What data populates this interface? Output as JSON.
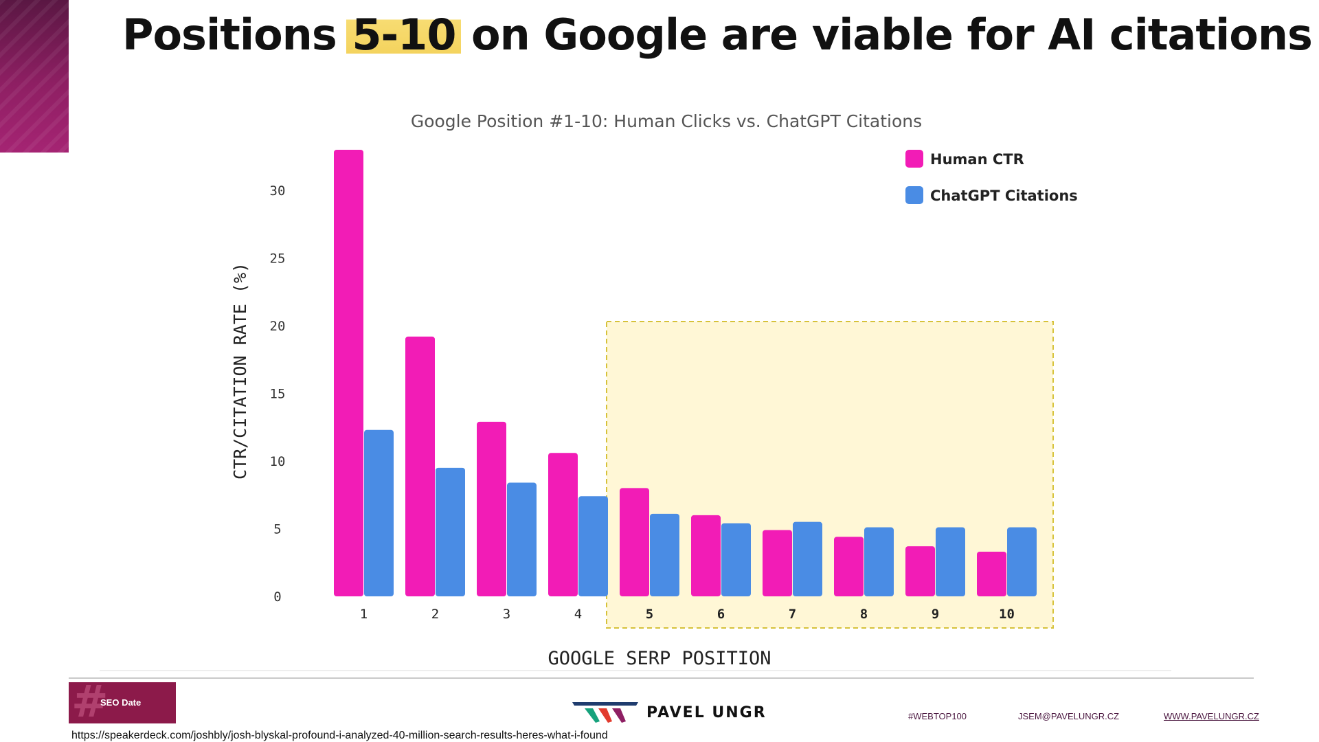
{
  "slide": {
    "title_pre": "Positions ",
    "title_highlight": "5-10",
    "title_post": " on Google are viable for AI citations"
  },
  "chart_data": {
    "type": "bar",
    "title": "Google Position #1-10: Human Clicks vs. ChatGPT Citations",
    "xlabel": "GOOGLE SERP POSITION",
    "ylabel": "CTR/CITATION RATE (%)",
    "categories": [
      "1",
      "2",
      "3",
      "4",
      "5",
      "6",
      "7",
      "8",
      "9",
      "10"
    ],
    "series": [
      {
        "name": "Human CTR",
        "color": "#f21cb6",
        "values": [
          33.0,
          19.2,
          12.9,
          10.6,
          8.0,
          6.0,
          4.9,
          4.4,
          3.7,
          3.3
        ]
      },
      {
        "name": "ChatGPT Citations",
        "color": "#4a8ce4",
        "values": [
          12.3,
          9.5,
          8.4,
          7.4,
          6.1,
          5.4,
          5.5,
          5.1,
          5.1,
          5.1
        ]
      }
    ],
    "yticks": [
      0,
      5,
      10,
      15,
      20,
      25,
      30
    ],
    "ylim": [
      0,
      33
    ],
    "legend_position": "top-right",
    "highlight_range": [
      "5",
      "10"
    ],
    "highlight_color": "#fff7d6",
    "grid": false
  },
  "footer": {
    "badge": "SEO Date",
    "brand": "PAVEL UNGR",
    "hashtag": "#WEBTOP100",
    "email": "JSEM@PAVELUNGR.CZ",
    "website": "WWW.PAVELUNGR.CZ",
    "source_url": "https://speakerdeck.com/joshbly/josh-blyskal-profound-i-analyzed-40-million-search-results-heres-what-i-found"
  }
}
